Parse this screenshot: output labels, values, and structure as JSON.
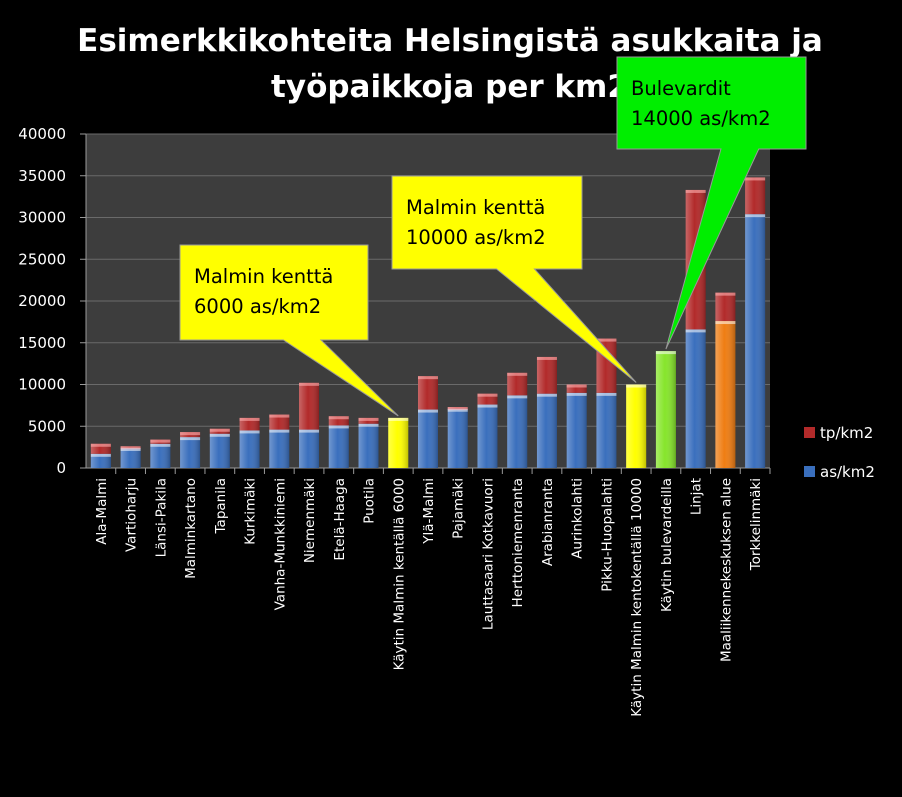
{
  "chart_data": {
    "type": "stacked-bar",
    "title_lines": [
      "Esimerkkikohteita Helsingistä asukkaita ja",
      "työpaikkoja per km2"
    ],
    "ylim": [
      0,
      40000
    ],
    "yticks": [
      0,
      5000,
      10000,
      15000,
      20000,
      25000,
      30000,
      35000,
      40000
    ],
    "categories": [
      "Ala-Malmi",
      "Vartioharju",
      "Länsi-Pakila",
      "Malminkartano",
      "Tapanila",
      "Kurkimäki",
      "Vanha-Munkkiniemi",
      "Niemenmäki",
      "Etelä-Haaga",
      "Puotila",
      "Käytin Malmin kentällä 6000",
      "Ylä-Malmi",
      "Pajamäki",
      "Lauttasaari Kotkavuori",
      "Herttoniemenranta",
      "Arabianranta",
      "Aurinkolahti",
      "Pikku-Huopalahti",
      "Käytin Malmin kentokentällä 10000",
      "Käytin bulevardeilla",
      "Linjat",
      "Maaliikennekeskuksen alue",
      "Torkkelinmäki"
    ],
    "series": [
      {
        "name": "as/km2",
        "color": "#3a6fbd",
        "values": [
          1700,
          2400,
          2900,
          3700,
          4100,
          4500,
          4600,
          4600,
          5100,
          5300,
          6000,
          7000,
          7100,
          7600,
          8700,
          8900,
          9000,
          9000,
          10000,
          14000,
          16600,
          17600,
          30400
        ]
      },
      {
        "name": "tp/km2",
        "color": "#b22a2a",
        "values": [
          1200,
          200,
          500,
          600,
          600,
          1500,
          1800,
          5600,
          1100,
          700,
          0,
          4000,
          200,
          1300,
          2700,
          4400,
          1000,
          6500,
          0,
          0,
          16700,
          3400,
          4400
        ]
      }
    ],
    "highlight_colors": {
      "Käytin Malmin kentällä 6000": "#ffff00",
      "Käytin Malmin kentokentällä 10000": "#ffff00",
      "Käytin bulevardeilla": "#86e52b",
      "Maaliikennekeskuksen alue": "#ef7d13"
    },
    "legend": {
      "position": "right",
      "entries": [
        "tp/km2",
        "as/km2"
      ]
    },
    "callouts": [
      {
        "lines": [
          "Malmin kenttä",
          "6000 as/km2"
        ],
        "color": "#ffff00",
        "target": "Käytin Malmin kentällä 6000"
      },
      {
        "lines": [
          "Malmin kenttä",
          "10000 as/km2"
        ],
        "color": "#ffff00",
        "target": "Käytin Malmin kentokentällä 10000"
      },
      {
        "lines": [
          "Bulevardit",
          "14000 as/km2"
        ],
        "color": "#00ee00",
        "target": "Käytin bulevardeilla"
      }
    ],
    "plot_background": "#3d3d3d",
    "grid": true
  }
}
